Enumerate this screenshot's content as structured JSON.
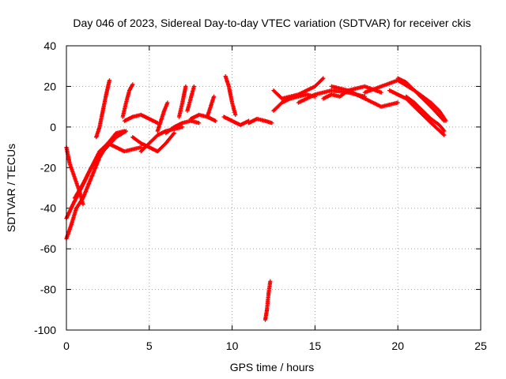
{
  "chart_data": {
    "type": "scatter",
    "title": "Day 046 of 2023, Sidereal Day-to-day VTEC variation (SDTVAR) for receiver ckis",
    "xlabel": "GPS time / hours",
    "ylabel": "SDTVAR / TECUs",
    "xlim": [
      0,
      25
    ],
    "ylim": [
      -100,
      40
    ],
    "xticks": [
      0,
      5,
      10,
      15,
      20,
      25
    ],
    "yticks": [
      -100,
      -80,
      -60,
      -40,
      -20,
      0,
      20,
      40
    ],
    "grid": true,
    "marker": "plus",
    "color": "#ff0000",
    "series": [
      {
        "x": [
          0.0,
          0.3,
          0.6,
          1.0,
          1.5,
          2.0,
          2.5,
          3.0,
          3.5
        ],
        "y": [
          -55,
          -48,
          -40,
          -35,
          -25,
          -15,
          -8,
          -3,
          -2
        ]
      },
      {
        "x": [
          0.0,
          0.2,
          0.5,
          0.8,
          1.0
        ],
        "y": [
          -10,
          -18,
          -25,
          -32,
          -38
        ]
      },
      {
        "x": [
          0.0,
          0.4,
          0.9,
          1.5,
          2.2,
          3.0,
          3.6
        ],
        "y": [
          -45,
          -38,
          -30,
          -20,
          -12,
          -5,
          -2
        ]
      },
      {
        "x": [
          0.5,
          1.0,
          1.5,
          2.0,
          2.5,
          3.0
        ],
        "y": [
          -35,
          -28,
          -20,
          -12,
          -8,
          -5
        ]
      },
      {
        "x": [
          1.8,
          2.0,
          2.2,
          2.4,
          2.6
        ],
        "y": [
          -5,
          0,
          8,
          16,
          23
        ]
      },
      {
        "x": [
          3.4,
          3.6,
          3.8,
          4.0
        ],
        "y": [
          5,
          12,
          18,
          21
        ]
      },
      {
        "x": [
          2.5,
          3.0,
          3.5,
          4.0,
          4.5
        ],
        "y": [
          -8,
          -10,
          -12,
          -11,
          -10
        ]
      },
      {
        "x": [
          3.5,
          4.0,
          4.5,
          5.0,
          5.5
        ],
        "y": [
          3,
          5,
          6,
          4,
          2
        ]
      },
      {
        "x": [
          4.5,
          5.0,
          5.5,
          6.0,
          6.5,
          7.0
        ],
        "y": [
          -12,
          -8,
          -4,
          -2,
          -1,
          0
        ]
      },
      {
        "x": [
          4.0,
          4.5,
          5.0,
          5.5,
          6.0,
          6.5
        ],
        "y": [
          -5,
          -8,
          -10,
          -12,
          -8,
          -3
        ]
      },
      {
        "x": [
          5.5,
          5.7,
          5.9,
          6.1
        ],
        "y": [
          -2,
          3,
          8,
          12
        ]
      },
      {
        "x": [
          6.0,
          6.5,
          7.0,
          7.5,
          8.0
        ],
        "y": [
          -3,
          0,
          2,
          3,
          2
        ]
      },
      {
        "x": [
          6.8,
          7.0,
          7.2
        ],
        "y": [
          5,
          12,
          20
        ]
      },
      {
        "x": [
          7.3,
          7.5,
          7.7
        ],
        "y": [
          8,
          14,
          20
        ]
      },
      {
        "x": [
          7.5,
          8.0,
          8.5,
          9.0
        ],
        "y": [
          4,
          6,
          5,
          3
        ]
      },
      {
        "x": [
          8.5,
          8.7,
          8.9
        ],
        "y": [
          5,
          10,
          15
        ]
      },
      {
        "x": [
          9.6,
          9.8,
          10.0,
          10.2
        ],
        "y": [
          25,
          20,
          12,
          6
        ]
      },
      {
        "x": [
          9.5,
          10.0,
          10.5,
          11.0
        ],
        "y": [
          5,
          3,
          1,
          3
        ]
      },
      {
        "x": [
          11.0,
          11.5,
          12.0,
          12.4
        ],
        "y": [
          2,
          4,
          3,
          2
        ]
      },
      {
        "x": [
          12.0,
          12.1,
          12.2,
          12.3
        ],
        "y": [
          -95,
          -90,
          -82,
          -76
        ]
      },
      {
        "x": [
          12.5,
          13.0,
          13.5,
          14.0,
          14.5,
          15.0
        ],
        "y": [
          8,
          12,
          14,
          15,
          16,
          15
        ]
      },
      {
        "x": [
          12.5,
          13.0,
          14.0,
          15.0,
          15.5
        ],
        "y": [
          18,
          14,
          16,
          20,
          24
        ]
      },
      {
        "x": [
          14.0,
          15.0,
          16.0,
          17.0,
          18.0
        ],
        "y": [
          12,
          16,
          18,
          17,
          15
        ]
      },
      {
        "x": [
          15.5,
          16.0,
          16.5,
          17.0,
          18.0,
          19.0
        ],
        "y": [
          14,
          16,
          15,
          18,
          20,
          17
        ]
      },
      {
        "x": [
          16.0,
          17.0,
          18.0,
          19.0,
          20.0
        ],
        "y": [
          20,
          18,
          14,
          10,
          12
        ]
      },
      {
        "x": [
          18.0,
          19.0,
          20.0,
          21.0,
          22.0,
          22.8
        ],
        "y": [
          17,
          20,
          23,
          18,
          10,
          3
        ]
      },
      {
        "x": [
          19.5,
          20.0,
          20.5,
          21.0,
          21.5,
          22.0,
          22.8
        ],
        "y": [
          18,
          16,
          14,
          10,
          6,
          2,
          -4
        ]
      },
      {
        "x": [
          20.0,
          20.5,
          21.0,
          22.0,
          22.5,
          22.9
        ],
        "y": [
          24,
          22,
          18,
          12,
          8,
          3
        ]
      },
      {
        "x": [
          20.5,
          21.0,
          21.5,
          22.0,
          22.5,
          22.8
        ],
        "y": [
          15,
          12,
          8,
          4,
          1,
          -2
        ]
      }
    ]
  }
}
